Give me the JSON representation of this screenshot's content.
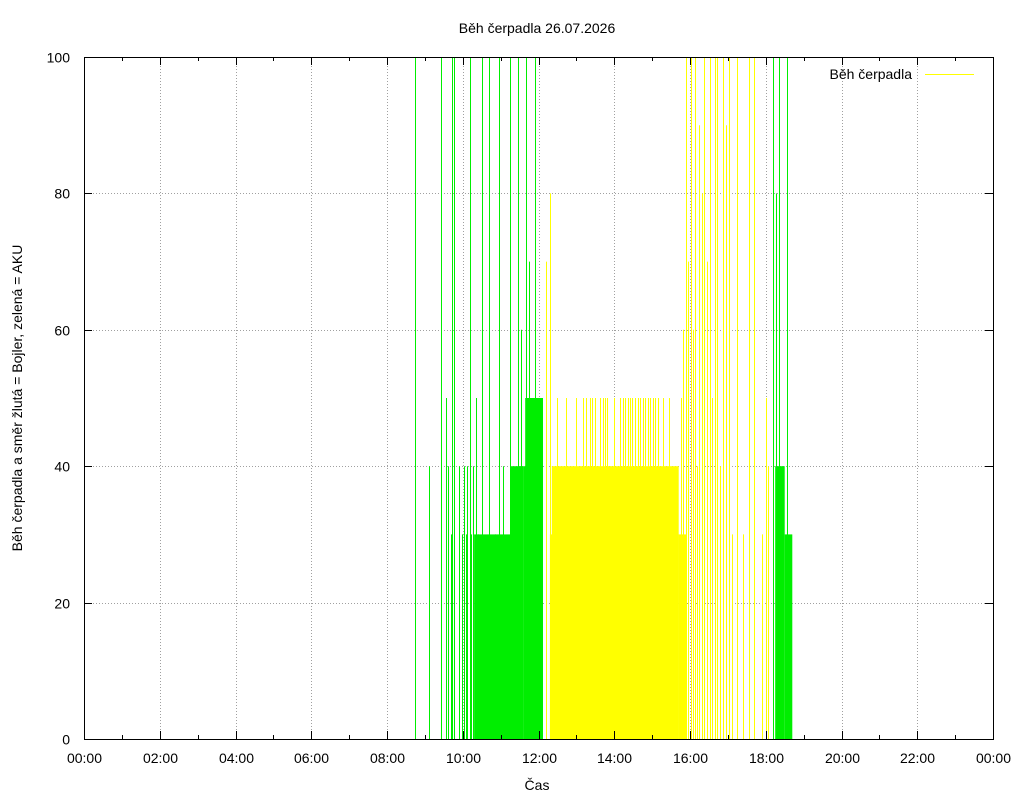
{
  "chart_data": {
    "type": "bar",
    "title": "Běh čerpadla 26.07.2026",
    "xlabel": "Čas",
    "ylabel": "Běh čerpadla a směr žlutá = Bojler, zelená = AKU",
    "xlim": [
      0,
      24
    ],
    "ylim": [
      0,
      100
    ],
    "x_ticks": [
      "00:00",
      "02:00",
      "04:00",
      "06:00",
      "08:00",
      "10:00",
      "12:00",
      "14:00",
      "16:00",
      "18:00",
      "20:00",
      "22:00",
      "00:00"
    ],
    "y_ticks": [
      "0",
      "20",
      "40",
      "60",
      "80",
      "100"
    ],
    "grid": true,
    "legend": {
      "position": "top-right",
      "entries": [
        "Běh čerpadla"
      ]
    },
    "colors": {
      "boiler": "#ffff00",
      "aku": "#00ee00"
    },
    "series": [
      {
        "name": "Běh čerpadla",
        "color": "#00ee00",
        "fills": [
          {
            "from": 10.3,
            "to": 11.25,
            "value": 30
          },
          {
            "from": 11.25,
            "to": 11.6,
            "value": 40
          },
          {
            "from": 11.6,
            "to": 12.1,
            "value": 40
          },
          {
            "from": 11.65,
            "to": 12.1,
            "value": 50
          },
          {
            "from": 18.25,
            "to": 18.5,
            "value": 40
          },
          {
            "from": 18.5,
            "to": 18.7,
            "value": 30
          }
        ],
        "spikes": [
          [
            8.73,
            100
          ],
          [
            9.12,
            40
          ],
          [
            9.42,
            100
          ],
          [
            9.55,
            50
          ],
          [
            9.62,
            40
          ],
          [
            9.68,
            30
          ],
          [
            9.72,
            100
          ],
          [
            9.78,
            100
          ],
          [
            9.9,
            40
          ],
          [
            9.98,
            30
          ],
          [
            10.02,
            40
          ],
          [
            10.08,
            30
          ],
          [
            10.12,
            40
          ],
          [
            10.18,
            100
          ],
          [
            10.22,
            30
          ],
          [
            10.26,
            40
          ],
          [
            10.35,
            50
          ],
          [
            10.4,
            30
          ],
          [
            10.5,
            100
          ],
          [
            10.68,
            100
          ],
          [
            10.85,
            30
          ],
          [
            10.95,
            100
          ],
          [
            11.05,
            40
          ],
          [
            11.25,
            100
          ],
          [
            11.3,
            30
          ],
          [
            11.45,
            100
          ],
          [
            11.5,
            40
          ],
          [
            11.55,
            60
          ],
          [
            11.68,
            100
          ],
          [
            11.75,
            70
          ],
          [
            11.82,
            50
          ],
          [
            11.9,
            100
          ],
          [
            11.95,
            50
          ],
          [
            12.02,
            50
          ],
          [
            12.08,
            50
          ],
          [
            18.2,
            100
          ],
          [
            18.28,
            80
          ],
          [
            18.35,
            100
          ],
          [
            18.42,
            40
          ],
          [
            18.55,
            100
          ]
        ]
      },
      {
        "name": "Běh čerpadla",
        "color": "#ffff00",
        "fills": [
          {
            "from": 12.3,
            "to": 15.7,
            "value": 30
          },
          {
            "from": 12.35,
            "to": 15.7,
            "value": 40
          },
          {
            "from": 15.7,
            "to": 15.9,
            "value": 30
          }
        ],
        "spikes": [
          [
            12.2,
            70
          ],
          [
            12.3,
            80
          ],
          [
            12.5,
            50
          ],
          [
            12.6,
            40
          ],
          [
            12.72,
            50
          ],
          [
            12.8,
            30
          ],
          [
            12.9,
            40
          ],
          [
            13.0,
            50
          ],
          [
            13.1,
            40
          ],
          [
            13.18,
            50
          ],
          [
            13.26,
            50
          ],
          [
            13.35,
            50
          ],
          [
            13.42,
            50
          ],
          [
            13.5,
            50
          ],
          [
            13.56,
            40
          ],
          [
            13.62,
            50
          ],
          [
            13.7,
            50
          ],
          [
            13.76,
            50
          ],
          [
            13.82,
            50
          ],
          [
            13.9,
            40
          ],
          [
            14.0,
            50
          ],
          [
            14.05,
            30
          ],
          [
            14.15,
            50
          ],
          [
            14.22,
            50
          ],
          [
            14.28,
            50
          ],
          [
            14.35,
            50
          ],
          [
            14.42,
            50
          ],
          [
            14.48,
            50
          ],
          [
            14.55,
            50
          ],
          [
            14.62,
            50
          ],
          [
            14.68,
            50
          ],
          [
            14.75,
            50
          ],
          [
            14.82,
            50
          ],
          [
            14.88,
            50
          ],
          [
            14.95,
            50
          ],
          [
            15.02,
            50
          ],
          [
            15.08,
            50
          ],
          [
            15.15,
            50
          ],
          [
            15.22,
            40
          ],
          [
            15.3,
            50
          ],
          [
            15.45,
            50
          ],
          [
            15.6,
            40
          ],
          [
            15.75,
            50
          ],
          [
            15.82,
            60
          ],
          [
            15.9,
            100
          ],
          [
            15.95,
            70
          ],
          [
            16.02,
            100
          ],
          [
            16.08,
            60
          ],
          [
            16.12,
            100
          ],
          [
            16.18,
            40
          ],
          [
            16.25,
            90
          ],
          [
            16.32,
            80
          ],
          [
            16.38,
            100
          ],
          [
            16.45,
            70
          ],
          [
            16.52,
            100
          ],
          [
            16.58,
            50
          ],
          [
            16.65,
            100
          ],
          [
            16.72,
            100
          ],
          [
            16.8,
            40
          ],
          [
            16.88,
            100
          ],
          [
            16.95,
            90
          ],
          [
            17.02,
            100
          ],
          [
            17.1,
            30
          ],
          [
            17.25,
            100
          ],
          [
            17.4,
            30
          ],
          [
            17.55,
            100
          ],
          [
            17.7,
            100
          ],
          [
            17.9,
            30
          ],
          [
            18.0,
            50
          ],
          [
            18.05,
            40
          ]
        ]
      }
    ]
  }
}
